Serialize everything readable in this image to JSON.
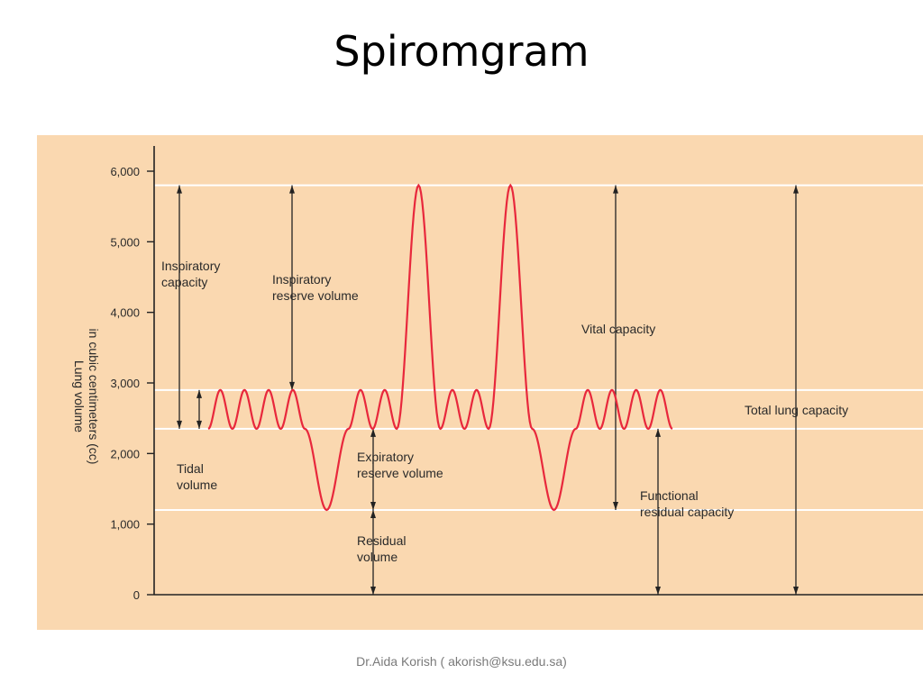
{
  "slide": {
    "title": "Spiromgram",
    "footer": "Dr.Aida Korish  ( akorish@ksu.edu.sa)"
  },
  "colors": {
    "background": "#fad8b0",
    "trace": "#e8283c",
    "reference_lines": "#ffffff",
    "axes": "#222222"
  },
  "chart_data": {
    "type": "line",
    "title": "",
    "ylabel_line1": "Lung volume",
    "ylabel_line2": "in cubic centimeters (cc)",
    "ylim": [
      0,
      6000
    ],
    "yticks": [
      {
        "value": 0,
        "label": "0"
      },
      {
        "value": 1000,
        "label": "1,000"
      },
      {
        "value": 2000,
        "label": "2,000"
      },
      {
        "value": 3000,
        "label": "3,000"
      },
      {
        "value": 4000,
        "label": "4,000"
      },
      {
        "value": 5000,
        "label": "5,000"
      },
      {
        "value": 6000,
        "label": "6,000"
      }
    ],
    "reference_levels": [
      5800,
      2900,
      2350,
      1200
    ],
    "series": [
      {
        "values": [
          [
            0,
            2350
          ],
          [
            0.5,
            2900
          ],
          [
            1,
            2350
          ],
          [
            1.5,
            2900
          ],
          [
            2,
            2350
          ],
          [
            2.5,
            2900
          ],
          [
            3,
            2350
          ],
          [
            3.5,
            2900
          ],
          [
            4,
            2350
          ],
          [
            4.9,
            1200
          ],
          [
            5.8,
            2350
          ],
          [
            6.3,
            2900
          ],
          [
            6.8,
            2350
          ],
          [
            7.3,
            2900
          ],
          [
            7.8,
            2350
          ],
          [
            8.7,
            5800
          ],
          [
            9.6,
            2350
          ],
          [
            10.1,
            2900
          ],
          [
            10.6,
            2350
          ],
          [
            11.1,
            2900
          ],
          [
            11.6,
            2350
          ],
          [
            12.5,
            5800
          ],
          [
            13.4,
            2350
          ],
          [
            14.3,
            1200
          ],
          [
            15.2,
            2350
          ],
          [
            15.7,
            2900
          ],
          [
            16.2,
            2350
          ],
          [
            16.7,
            2900
          ],
          [
            17.2,
            2350
          ],
          [
            17.7,
            2900
          ],
          [
            18.2,
            2350
          ],
          [
            18.7,
            2900
          ],
          [
            19.2,
            2350
          ]
        ]
      }
    ],
    "annotations": [
      {
        "key": "inspiratory-capacity",
        "lines": [
          "Inspiratory",
          "capacity"
        ],
        "from": 2350,
        "to": 5800
      },
      {
        "key": "inspiratory-reserve-volume",
        "lines": [
          "Inspiratory",
          "reserve volume"
        ],
        "from": 2900,
        "to": 5800
      },
      {
        "key": "tidal-volume",
        "lines": [
          "Tidal",
          "volume"
        ],
        "from": 2350,
        "to": 2900
      },
      {
        "key": "expiratory-reserve-volume",
        "lines": [
          "Expiratory",
          "reserve volume"
        ],
        "from": 1200,
        "to": 2350
      },
      {
        "key": "residual-volume",
        "lines": [
          "Residual",
          "volume"
        ],
        "from": 0,
        "to": 1200
      },
      {
        "key": "vital-capacity",
        "lines": [
          "Vital capacity"
        ],
        "from": 1200,
        "to": 5800
      },
      {
        "key": "functional-residual-capacity",
        "lines": [
          "Functional",
          "residual capacity"
        ],
        "from": 0,
        "to": 2350
      },
      {
        "key": "total-lung-capacity",
        "lines": [
          "Total lung capacity"
        ],
        "from": 0,
        "to": 5800
      }
    ]
  }
}
